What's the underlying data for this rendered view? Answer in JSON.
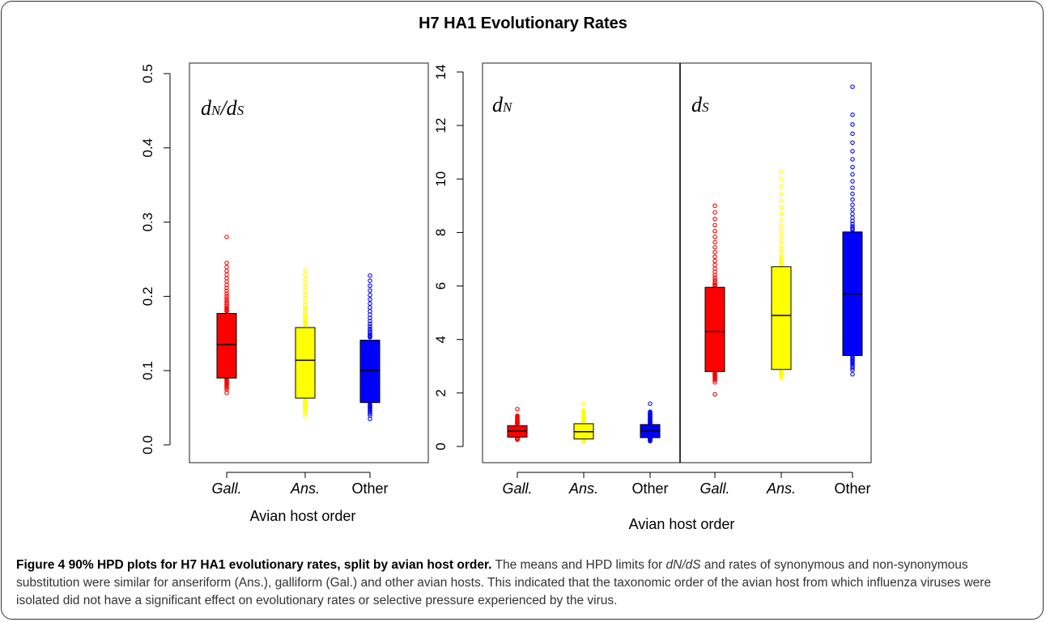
{
  "figure": {
    "title": "H7 HA1 Evolutionary Rates"
  },
  "chart_data": [
    {
      "type": "box",
      "panel_label": "dN/dS",
      "categories": [
        "Gall.",
        "Ans.",
        "Other"
      ],
      "category_italic": [
        true,
        true,
        false
      ],
      "xlabel": "Avian host order",
      "ylabel": "",
      "ylim": [
        0,
        0.5
      ],
      "yticks": [
        "0.0",
        "0.1",
        "0.2",
        "0.3",
        "0.4",
        "0.5"
      ],
      "ytick_values": [
        0,
        0.1,
        0.2,
        0.3,
        0.4,
        0.5
      ],
      "series": [
        {
          "name": "Gall.",
          "color": "#ff0000",
          "q1": 0.09,
          "median": 0.135,
          "q3": 0.177,
          "lower": 0.088,
          "upper": 0.178,
          "outliers_low_max": 0.088,
          "outliers_low_min": 0.07,
          "outliers_high_min": 0.18,
          "outliers_high_max": 0.245,
          "outlier_extra": [
            0.28
          ]
        },
        {
          "name": "Ans.",
          "color": "#ffff00",
          "q1": 0.063,
          "median": 0.114,
          "q3": 0.158,
          "lower": 0.062,
          "upper": 0.16,
          "outliers_low_max": 0.06,
          "outliers_low_min": 0.038,
          "outliers_high_min": 0.162,
          "outliers_high_max": 0.235,
          "outlier_extra": []
        },
        {
          "name": "Other",
          "color": "#0000ff",
          "q1": 0.057,
          "median": 0.1,
          "q3": 0.141,
          "lower": 0.056,
          "upper": 0.142,
          "outliers_low_max": 0.055,
          "outliers_low_min": 0.035,
          "outliers_high_min": 0.145,
          "outliers_high_max": 0.228,
          "outlier_extra": []
        }
      ]
    },
    {
      "type": "box",
      "panel_label": "dN",
      "categories": [
        "Gall.",
        "Ans.",
        "Other"
      ],
      "category_italic": [
        true,
        true,
        false
      ],
      "xlabel": "Avian host order",
      "ylabel": "",
      "ylim": [
        0,
        14
      ],
      "yticks": [
        "0",
        "2",
        "4",
        "6",
        "8",
        "10",
        "12",
        "14"
      ],
      "ytick_values": [
        0,
        2,
        4,
        6,
        8,
        10,
        12,
        14
      ],
      "series": [
        {
          "name": "Gall.",
          "color": "#ff0000",
          "q1": 0.35,
          "median": 0.58,
          "q3": 0.78,
          "lower": 0.33,
          "upper": 0.8,
          "outliers_low_max": 0.32,
          "outliers_low_min": 0.25,
          "outliers_high_min": 0.85,
          "outliers_high_max": 1.15,
          "outlier_extra": [
            1.4
          ]
        },
        {
          "name": "Ans.",
          "color": "#ffff00",
          "q1": 0.28,
          "median": 0.55,
          "q3": 0.85,
          "lower": 0.27,
          "upper": 0.87,
          "outliers_low_max": 0.26,
          "outliers_low_min": 0.2,
          "outliers_high_min": 0.9,
          "outliers_high_max": 1.35,
          "outlier_extra": [
            1.6
          ]
        },
        {
          "name": "Other",
          "color": "#0000ff",
          "q1": 0.33,
          "median": 0.58,
          "q3": 0.82,
          "lower": 0.32,
          "upper": 0.84,
          "outliers_low_max": 0.3,
          "outliers_low_min": 0.2,
          "outliers_high_min": 0.88,
          "outliers_high_max": 1.3,
          "outlier_extra": [
            1.6
          ]
        }
      ]
    },
    {
      "type": "box",
      "panel_label": "dS",
      "categories": [
        "Gall.",
        "Ans.",
        "Other"
      ],
      "category_italic": [
        true,
        true,
        false
      ],
      "xlabel": "Avian host order",
      "ylabel": "",
      "ylim": [
        0,
        14
      ],
      "series": [
        {
          "name": "Gall.",
          "color": "#ff0000",
          "q1": 2.8,
          "median": 4.3,
          "q3": 5.95,
          "lower": 2.78,
          "upper": 5.97,
          "outliers_low_max": 2.75,
          "outliers_low_min": 2.4,
          "outliers_high_min": 6.0,
          "outliers_high_max": 9.0,
          "outlier_extra": [
            1.95
          ]
        },
        {
          "name": "Ans.",
          "color": "#ffff00",
          "q1": 2.88,
          "median": 4.9,
          "q3": 6.72,
          "lower": 2.86,
          "upper": 6.74,
          "outliers_low_max": 2.84,
          "outliers_low_min": 2.55,
          "outliers_high_min": 6.78,
          "outliers_high_max": 10.3,
          "outlier_extra": []
        },
        {
          "name": "Other",
          "color": "#0000ff",
          "q1": 3.4,
          "median": 5.7,
          "q3": 8.02,
          "lower": 3.38,
          "upper": 8.04,
          "outliers_low_max": 3.35,
          "outliers_low_min": 2.7,
          "outliers_high_min": 8.1,
          "outliers_high_max": 12.4,
          "outlier_extra": [
            13.45
          ]
        }
      ]
    }
  ],
  "caption": {
    "figure_number": "Figure 4",
    "title": "90% HPD plots for H7 HA1 evolutionary rates, split by avian host order.",
    "text_1": "The means and HPD limits for ",
    "term_1": "dN/dS",
    "text_2": " and rates of synonymous and non-synonymous substitution were similar for anseriform (Ans.), galliform (Gal.) and other avian hosts. This indicated that the taxonomic order of the avian host from which influenza viruses were isolated did not have a significant effect on evolutionary rates or selective pressure experienced by the virus."
  }
}
